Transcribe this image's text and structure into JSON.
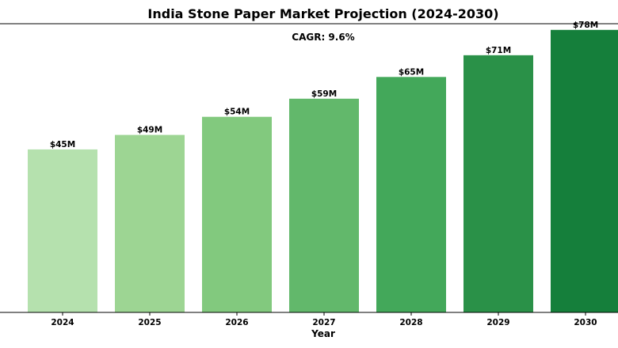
{
  "chart_data": {
    "type": "bar",
    "title": "India Stone Paper Market Projection (2024-2030)",
    "annotation": "CAGR: 9.6%",
    "xlabel": "Year",
    "ylabel": "",
    "categories": [
      "2024",
      "2025",
      "2026",
      "2027",
      "2028",
      "2029",
      "2030"
    ],
    "values": [
      45,
      49,
      54,
      59,
      65,
      71,
      78
    ],
    "value_labels": [
      "$45M",
      "$49M",
      "$54M",
      "$59M",
      "$65M",
      "$71M",
      "$78M"
    ],
    "ylim": [
      0,
      79.7
    ],
    "grid": false,
    "colors": [
      "#b5e1ae",
      "#9dd593",
      "#82c97e",
      "#62b86b",
      "#43a85a",
      "#2a9148",
      "#157f3b"
    ]
  }
}
